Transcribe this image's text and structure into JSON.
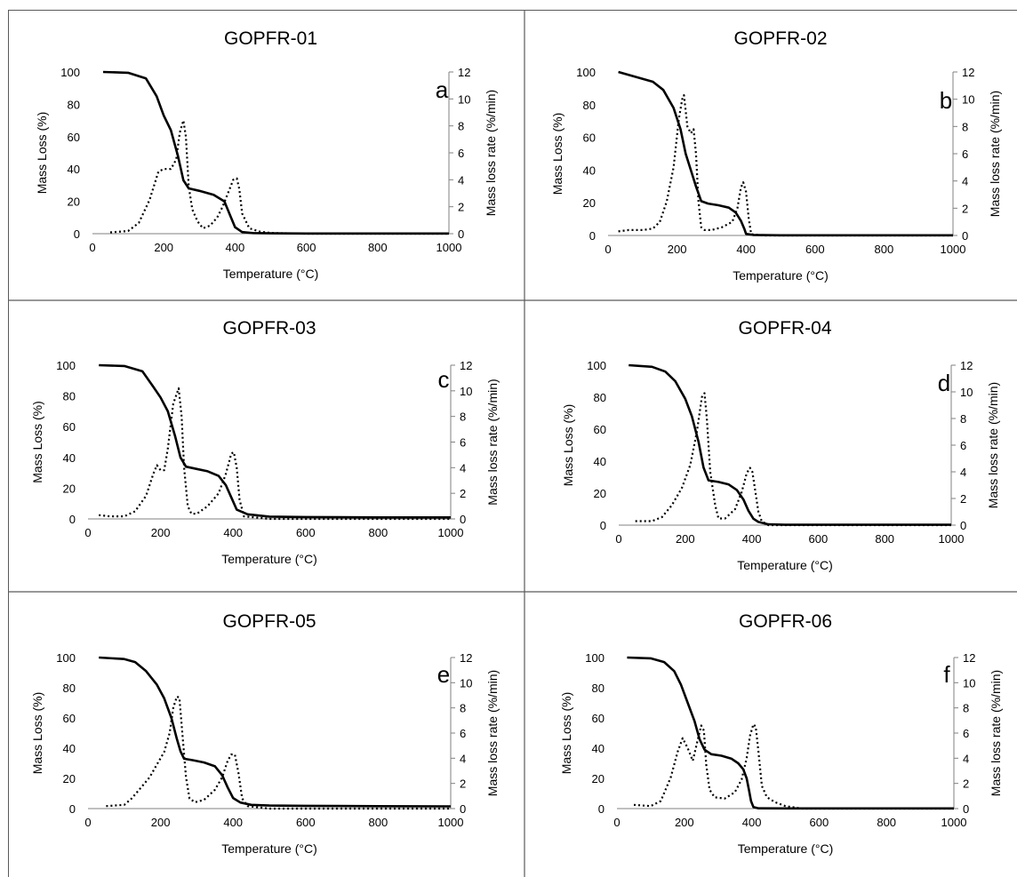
{
  "figure": {
    "tick_color": "#808080",
    "line_color": "#000000",
    "border_color": "#5a5a5a"
  },
  "chart_data": [
    {
      "type": "line",
      "title": "GOPFR-01",
      "panel_letter": "a",
      "xlabel": "Temperature (°C)",
      "ylabel": "Mass Loss (%)",
      "y2label": "Mass loss rate (%/min)",
      "xlim": [
        0,
        1000
      ],
      "ylim": [
        0,
        100
      ],
      "y2lim": [
        0,
        12
      ],
      "xticks": [
        0,
        200,
        400,
        600,
        800,
        1000
      ],
      "yticks": [
        0,
        20,
        40,
        60,
        80,
        100
      ],
      "y2ticks": [
        0,
        2,
        4,
        6,
        8,
        10,
        12
      ],
      "grid": false,
      "series": [
        {
          "axis": "left",
          "style": "solid",
          "x": [
            30,
            100,
            150,
            180,
            200,
            220,
            240,
            255,
            270,
            300,
            340,
            370,
            385,
            400,
            420,
            450,
            500,
            600,
            800,
            1000
          ],
          "y": [
            100,
            99.5,
            96,
            85,
            73,
            64,
            48,
            33,
            28,
            26.5,
            24,
            20,
            12,
            4,
            1,
            0.4,
            0.2,
            0.1,
            0.1,
            0.1
          ]
        },
        {
          "axis": "right",
          "style": "dotted",
          "x": [
            50,
            100,
            130,
            160,
            185,
            200,
            220,
            235,
            245,
            255,
            262,
            270,
            280,
            295,
            310,
            330,
            350,
            365,
            380,
            395,
            405,
            412,
            420,
            440,
            470,
            500,
            600,
            1000
          ],
          "y": [
            0.1,
            0.2,
            0.8,
            2.5,
            4.6,
            4.8,
            4.8,
            5.5,
            7.5,
            8.4,
            7.2,
            3.5,
            1.8,
            0.9,
            0.4,
            0.6,
            1.2,
            2,
            3,
            4,
            4.1,
            3.3,
            1.5,
            0.4,
            0.15,
            0.05,
            0,
            0
          ]
        }
      ]
    },
    {
      "type": "line",
      "title": "GOPFR-02",
      "panel_letter": "b",
      "xlabel": "Temperature (°C)",
      "ylabel": "Mass Loss (%)",
      "y2label": "Mass loss rate (%/min)",
      "xlim": [
        0,
        1000
      ],
      "ylim": [
        0,
        100
      ],
      "y2lim": [
        0,
        12
      ],
      "xticks": [
        0,
        200,
        400,
        600,
        800,
        1000
      ],
      "yticks": [
        0,
        20,
        40,
        60,
        80,
        100
      ],
      "y2ticks": [
        0,
        2,
        4,
        6,
        8,
        10,
        12
      ],
      "grid": false,
      "series": [
        {
          "axis": "left",
          "style": "solid",
          "x": [
            30,
            80,
            130,
            160,
            190,
            210,
            225,
            240,
            255,
            270,
            290,
            320,
            350,
            370,
            385,
            395,
            400,
            420,
            500,
            1000
          ],
          "y": [
            100,
            97,
            94,
            89,
            78,
            65,
            50,
            40,
            30,
            21,
            19.5,
            18.5,
            17,
            14,
            9,
            4,
            1,
            0.3,
            0.1,
            0.1
          ]
        },
        {
          "axis": "right",
          "style": "dotted",
          "x": [
            30,
            60,
            100,
            130,
            150,
            170,
            190,
            205,
            215,
            220,
            230,
            240,
            248,
            255,
            262,
            270,
            280,
            300,
            330,
            360,
            375,
            385,
            392,
            400,
            408,
            415,
            450,
            1000
          ],
          "y": [
            0.3,
            0.4,
            0.4,
            0.5,
            1,
            2.5,
            5,
            8.5,
            10,
            10.3,
            8,
            7.5,
            7.8,
            6,
            2.5,
            0.6,
            0.4,
            0.4,
            0.6,
            1,
            2,
            3.5,
            3.9,
            3.2,
            1.2,
            0.1,
            0,
            0
          ]
        }
      ]
    },
    {
      "type": "line",
      "title": "GOPFR-03",
      "panel_letter": "c",
      "xlabel": "Temperature (°C)",
      "ylabel": "Mass Loss (%)",
      "y2label": "Mass loss rate (%/min)",
      "xlim": [
        0,
        1000
      ],
      "ylim": [
        0,
        100
      ],
      "y2lim": [
        0,
        12
      ],
      "xticks": [
        0,
        200,
        400,
        600,
        800,
        1000
      ],
      "yticks": [
        0,
        20,
        40,
        60,
        80,
        100
      ],
      "y2ticks": [
        0,
        2,
        4,
        6,
        8,
        10,
        12
      ],
      "grid": false,
      "series": [
        {
          "axis": "left",
          "style": "solid",
          "x": [
            30,
            100,
            150,
            180,
            200,
            220,
            240,
            255,
            270,
            300,
            330,
            360,
            380,
            395,
            410,
            440,
            500,
            600,
            800,
            1000
          ],
          "y": [
            100,
            99.5,
            96,
            86,
            79,
            70,
            54,
            40,
            34,
            32.5,
            31,
            28,
            22,
            14,
            6,
            3,
            1.5,
            1.2,
            1,
            1
          ]
        },
        {
          "axis": "right",
          "style": "dotted",
          "x": [
            30,
            60,
            100,
            130,
            160,
            180,
            190,
            200,
            210,
            220,
            235,
            250,
            258,
            265,
            275,
            285,
            300,
            330,
            360,
            380,
            395,
            402,
            410,
            418,
            430,
            500,
            1000
          ],
          "y": [
            0.3,
            0.2,
            0.2,
            0.6,
            1.8,
            3.5,
            4.2,
            3.8,
            3.8,
            5.5,
            9,
            10.2,
            8,
            4,
            1,
            0.4,
            0.4,
            1,
            2,
            3.5,
            5.1,
            5.2,
            4,
            1.5,
            0.2,
            0,
            0
          ]
        }
      ]
    },
    {
      "type": "line",
      "title": "GOPFR-04",
      "panel_letter": "d",
      "xlabel": "Temperature (°C)",
      "ylabel": "Mass Loss (%)",
      "y2label": "Mass loss rate (%/min)",
      "xlim": [
        0,
        1000
      ],
      "ylim": [
        0,
        100
      ],
      "y2lim": [
        0,
        12
      ],
      "xticks": [
        0,
        200,
        400,
        600,
        800,
        1000
      ],
      "yticks": [
        0,
        20,
        40,
        60,
        80,
        100
      ],
      "y2ticks": [
        0,
        2,
        4,
        6,
        8,
        10,
        12
      ],
      "grid": false,
      "series": [
        {
          "axis": "left",
          "style": "solid",
          "x": [
            30,
            100,
            140,
            170,
            200,
            220,
            240,
            255,
            270,
            300,
            330,
            355,
            375,
            390,
            405,
            420,
            450,
            500,
            1000
          ],
          "y": [
            100,
            99,
            96,
            90,
            79,
            68,
            52,
            36,
            28,
            27,
            25.5,
            22,
            16,
            9,
            4,
            2,
            0.5,
            0.2,
            0.2
          ]
        },
        {
          "axis": "right",
          "style": "dotted",
          "x": [
            50,
            100,
            130,
            160,
            190,
            215,
            235,
            250,
            258,
            265,
            275,
            290,
            300,
            320,
            350,
            370,
            385,
            395,
            402,
            410,
            420,
            430,
            450,
            1000
          ],
          "y": [
            0.3,
            0.3,
            0.6,
            1.5,
            2.8,
            4.5,
            7,
            9.6,
            9.9,
            8,
            4,
            1.5,
            0.5,
            0.5,
            1.2,
            2.5,
            3.9,
            4.3,
            4,
            2.7,
            1,
            0.3,
            0,
            0
          ]
        }
      ]
    },
    {
      "type": "line",
      "title": "GOPFR-05",
      "panel_letter": "e",
      "xlabel": "Temperature (°C)",
      "ylabel": "Mass Loss (%)",
      "y2label": "Mass loss rate (%/min)",
      "xlim": [
        0,
        1000
      ],
      "ylim": [
        0,
        100
      ],
      "y2lim": [
        0,
        12
      ],
      "xticks": [
        0,
        200,
        400,
        600,
        800,
        1000
      ],
      "yticks": [
        0,
        20,
        40,
        60,
        80,
        100
      ],
      "y2ticks": [
        0,
        2,
        4,
        6,
        8,
        10,
        12
      ],
      "grid": false,
      "series": [
        {
          "axis": "left",
          "style": "solid",
          "x": [
            30,
            100,
            130,
            160,
            190,
            210,
            230,
            245,
            255,
            265,
            290,
            320,
            350,
            370,
            385,
            400,
            420,
            450,
            500,
            600,
            800,
            1000
          ],
          "y": [
            100,
            99,
            97,
            91,
            82,
            73,
            60,
            46,
            38,
            33,
            32,
            30.5,
            28,
            22,
            14,
            7,
            4,
            2.5,
            2,
            1.8,
            1.6,
            1.5
          ]
        },
        {
          "axis": "right",
          "style": "dotted",
          "x": [
            50,
            100,
            120,
            150,
            170,
            190,
            210,
            225,
            235,
            245,
            252,
            260,
            270,
            280,
            295,
            320,
            350,
            370,
            385,
            395,
            405,
            415,
            425,
            440,
            500,
            1000
          ],
          "y": [
            0.2,
            0.3,
            0.8,
            1.8,
            2.5,
            3.5,
            4.5,
            6,
            8,
            8.9,
            8.8,
            6,
            2.5,
            0.8,
            0.5,
            0.7,
            1.5,
            2.5,
            3.8,
            4.3,
            4.3,
            2.8,
            0.8,
            0.2,
            0,
            0
          ]
        }
      ]
    },
    {
      "type": "line",
      "title": "GOPFR-06",
      "panel_letter": "f",
      "xlabel": "Temperature (°C)",
      "ylabel": "Mass Loss (%)",
      "y2label": "Mass loss rate (%/min)",
      "xlim": [
        0,
        1000
      ],
      "ylim": [
        0,
        100
      ],
      "y2lim": [
        0,
        12
      ],
      "xticks": [
        0,
        200,
        400,
        600,
        800,
        1000
      ],
      "yticks": [
        0,
        20,
        40,
        60,
        80,
        100
      ],
      "y2ticks": [
        0,
        2,
        4,
        6,
        8,
        10,
        12
      ],
      "grid": false,
      "series": [
        {
          "axis": "left",
          "style": "solid",
          "x": [
            30,
            100,
            140,
            170,
            190,
            210,
            230,
            245,
            260,
            280,
            310,
            340,
            360,
            375,
            385,
            392,
            398,
            405,
            420,
            500,
            1000
          ],
          "y": [
            100,
            99.5,
            97,
            91,
            82,
            70,
            58,
            46,
            39,
            36,
            35,
            33,
            30,
            26,
            20,
            12,
            5,
            1,
            0.2,
            0.1,
            0.1
          ]
        },
        {
          "axis": "right",
          "style": "dotted",
          "x": [
            50,
            100,
            130,
            160,
            180,
            195,
            210,
            225,
            240,
            250,
            258,
            265,
            275,
            290,
            320,
            350,
            370,
            385,
            395,
            405,
            412,
            420,
            430,
            445,
            470,
            500,
            550,
            1000
          ],
          "y": [
            0.3,
            0.2,
            0.6,
            2.5,
            4.5,
            5.6,
            4.8,
            3.8,
            5.5,
            6.6,
            6.2,
            3.5,
            1.5,
            0.9,
            0.8,
            1.3,
            2.3,
            4,
            5.8,
            6.7,
            6.5,
            4.5,
            1.8,
            0.9,
            0.5,
            0.2,
            0,
            0
          ]
        }
      ]
    }
  ]
}
